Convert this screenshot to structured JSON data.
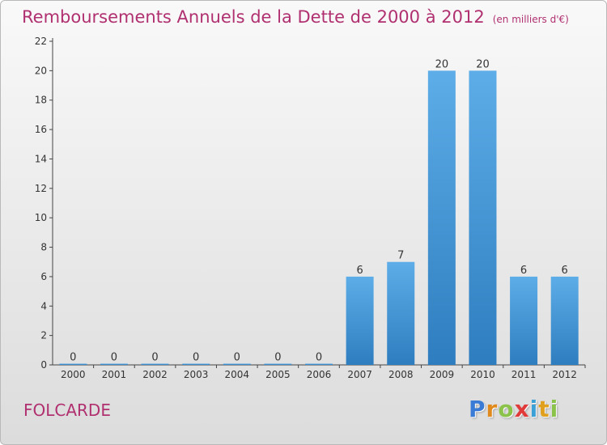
{
  "chart_data": {
    "type": "bar",
    "title": "Remboursements Annuels de la Dette de 2000 à 2012",
    "unit": "(en milliers d'€)",
    "categories": [
      "2000",
      "2001",
      "2002",
      "2003",
      "2004",
      "2005",
      "2006",
      "2007",
      "2008",
      "2009",
      "2010",
      "2011",
      "2012"
    ],
    "values": [
      0,
      0,
      0,
      0,
      0,
      0,
      0,
      6,
      7,
      20,
      20,
      6,
      6
    ],
    "data_labels": [
      "0",
      "0",
      "0",
      "0",
      "0",
      "0",
      "0",
      "6",
      "7",
      "20",
      "20",
      "6",
      "6"
    ],
    "ylim": [
      0,
      22
    ],
    "yticks": [
      0,
      2,
      4,
      6,
      8,
      10,
      12,
      14,
      16,
      18,
      20,
      22
    ],
    "grid": false,
    "colors": {
      "bar_top": "#5dade8",
      "bar_bottom": "#2e7dbf",
      "title": "#b03070"
    }
  },
  "commune": "FOLCARDE",
  "logo": {
    "letters": [
      {
        "ch": "P",
        "color": "#3a7bd5"
      },
      {
        "ch": "r",
        "color": "#e08a1e"
      },
      {
        "ch": "o",
        "color": "#8bc34a"
      },
      {
        "ch": "x",
        "color": "#e03a3a"
      },
      {
        "ch": "i",
        "color": "#3aa0d5"
      },
      {
        "ch": "t",
        "color": "#e0a01e"
      },
      {
        "ch": "i",
        "color": "#8bc34a"
      }
    ]
  }
}
